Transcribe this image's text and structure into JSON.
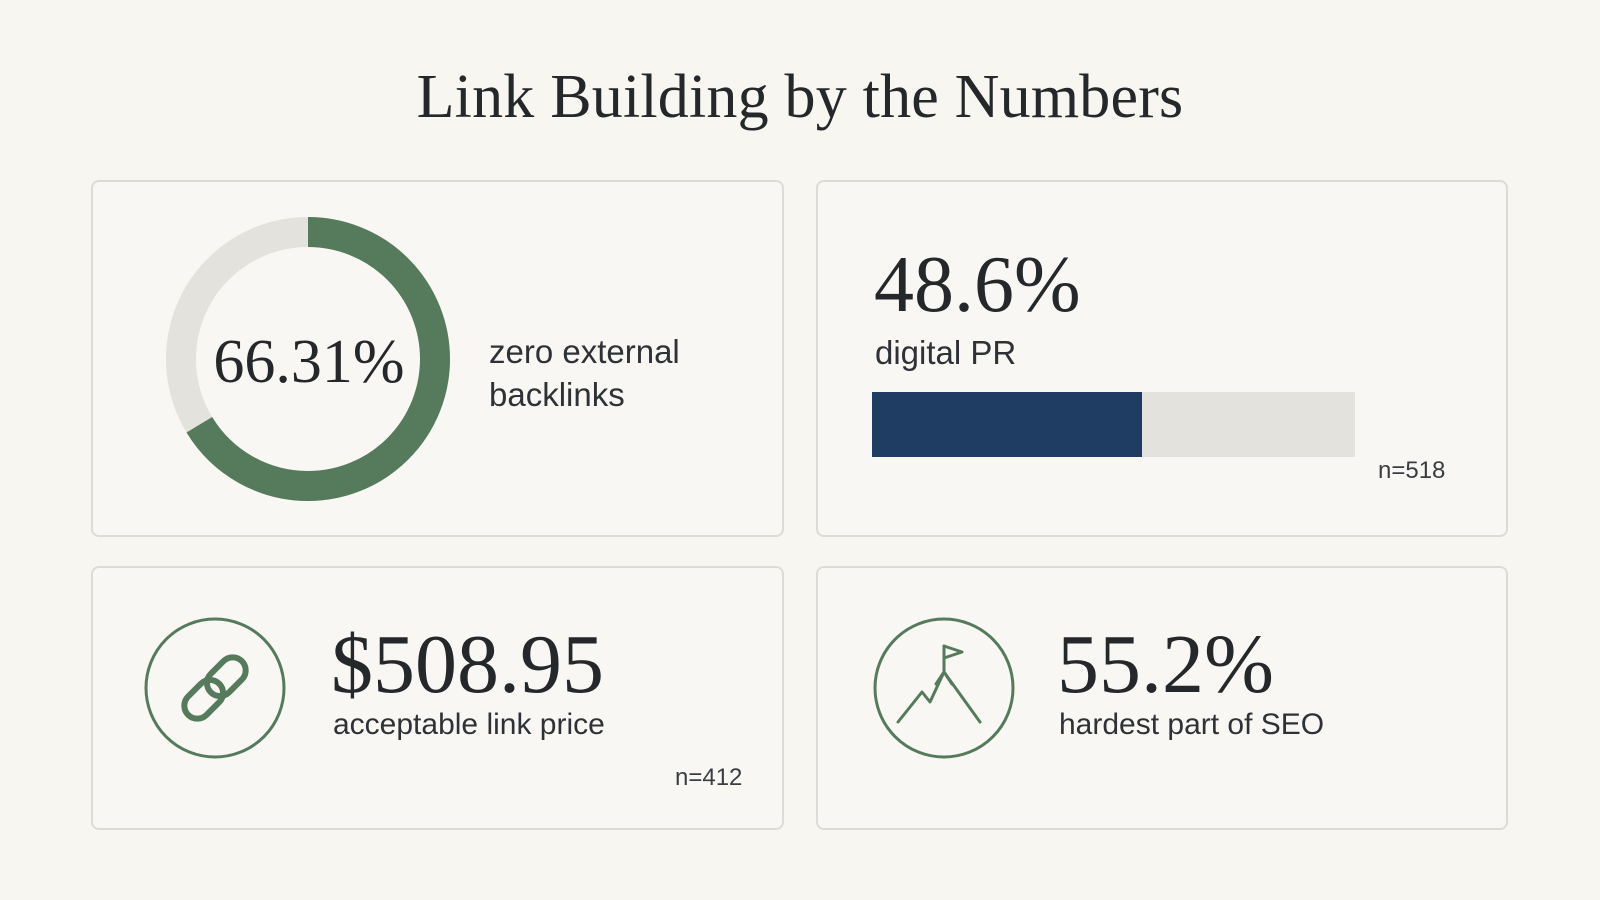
{
  "title": "Link Building by the Numbers",
  "chart_data": [
    {
      "type": "pie",
      "variant": "donut",
      "value_display": "66.31%",
      "percent": 66.31,
      "label": "zero external backlinks",
      "colors": {
        "fill": "#567a5c",
        "remainder": "#e4e2dd"
      }
    },
    {
      "type": "bar",
      "variant": "progress",
      "value_display": "48.6%",
      "percent": 48.6,
      "label": "digital PR",
      "sample": "n=518",
      "colors": {
        "fill": "#1f3d63",
        "track": "#e4e2dd"
      }
    },
    {
      "type": "stat",
      "value_display": "$508.95",
      "label": "acceptable link price",
      "sample": "n=412",
      "icon": "link-icon"
    },
    {
      "type": "stat",
      "value_display": "55.2%",
      "label": "hardest part of SEO",
      "icon": "mountain-flag-icon"
    }
  ],
  "colors": {
    "background": "#f7f6f1",
    "card_border": "#dddbd5",
    "accent_green": "#567a5c",
    "accent_navy": "#1f3d63"
  }
}
